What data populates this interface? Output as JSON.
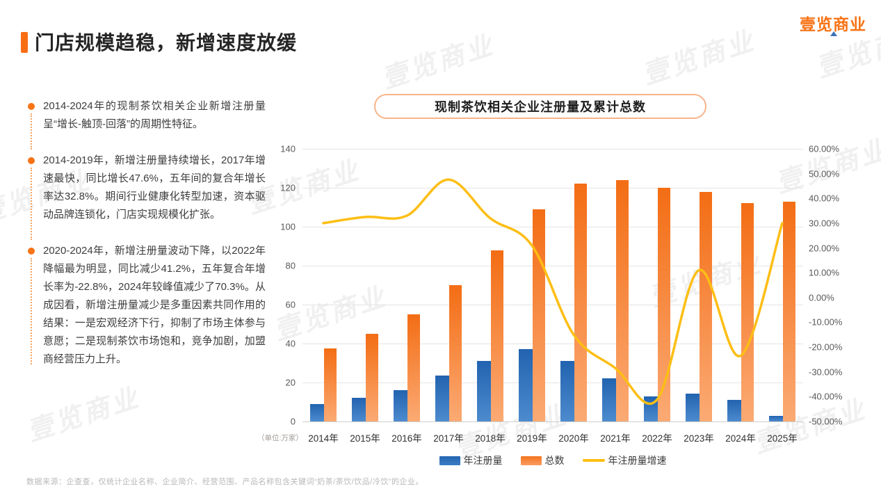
{
  "header": {
    "title": "门店规模趋稳，新增速度放缓",
    "logo": "壹览商业"
  },
  "watermark": {
    "text": "壹览商业"
  },
  "bullets": [
    {
      "text": "2014-2024年的现制茶饮相关企业新增注册量呈“增长-触顶-回落”的周期性特征。"
    },
    {
      "text": "2014-2019年，新增注册量持续增长，2017年增速最快，同比增长47.6%，五年间的复合年增长率达32.8%。期间行业健康化转型加速，资本驱动品牌连锁化，门店实现规模化扩张。"
    },
    {
      "text": "2020-2024年，新增注册量波动下降，以2022年降幅最为明显，同比减少41.2%，五年复合年增长率为-22.8%，2024年较峰值减少了70.3%。从成因看，新增注册量减少是多重因素共同作用的结果：一是宏观经济下行，抑制了市场主体参与意愿；二是现制茶饮市场饱和，竞争加剧，加盟商经营压力上升。"
    }
  ],
  "chart_data": {
    "type": "combo",
    "title": "现制茶饮相关企业注册量及累计总数",
    "unit_label": "（单位:万家）",
    "categories": [
      "2014年",
      "2015年",
      "2016年",
      "2017年",
      "2018年",
      "2019年",
      "2020年",
      "2021年",
      "2022年",
      "2023年",
      "2024年",
      "2025年"
    ],
    "series": [
      {
        "name": "年注册量",
        "type": "bar",
        "axis": "left",
        "values": [
          9,
          12,
          16,
          23.6,
          31,
          37,
          31,
          22,
          13,
          14.3,
          11,
          3
        ]
      },
      {
        "name": "总数",
        "type": "bar",
        "axis": "left",
        "values": [
          37.5,
          45,
          55,
          70,
          88,
          109,
          122,
          124,
          120,
          118,
          112,
          113
        ]
      },
      {
        "name": "年注册量增速",
        "type": "line",
        "axis": "right",
        "values": [
          30,
          32.5,
          33,
          47.6,
          32,
          21,
          -15,
          -28.5,
          -41.2,
          11,
          -23.5,
          30
        ]
      }
    ],
    "left_axis": {
      "min": 0,
      "max": 140,
      "ticks": [
        140,
        120,
        100,
        80,
        60,
        40,
        20,
        0
      ]
    },
    "right_axis": {
      "min": -50,
      "max": 60,
      "ticks": [
        "60.00%",
        "50.00%",
        "40.00%",
        "30.00%",
        "20.00%",
        "10.00%",
        "0.00%",
        "-10.00%",
        "-20.00%",
        "-30.00%",
        "-40.00%",
        "-50.00%"
      ]
    },
    "grid": "horizontal",
    "legend_position": "bottom",
    "colors": {
      "bar1": "#2263b0",
      "bar2": "#f36d14",
      "line": "#fdbe14",
      "accent": "#f87316"
    }
  },
  "footer": {
    "source": "数据来源：企查查，仅统计企业名称、企业简介、经营范围、产品名称包含关键词“奶茶/茶饮/饮品/冷饮”的企业。"
  }
}
